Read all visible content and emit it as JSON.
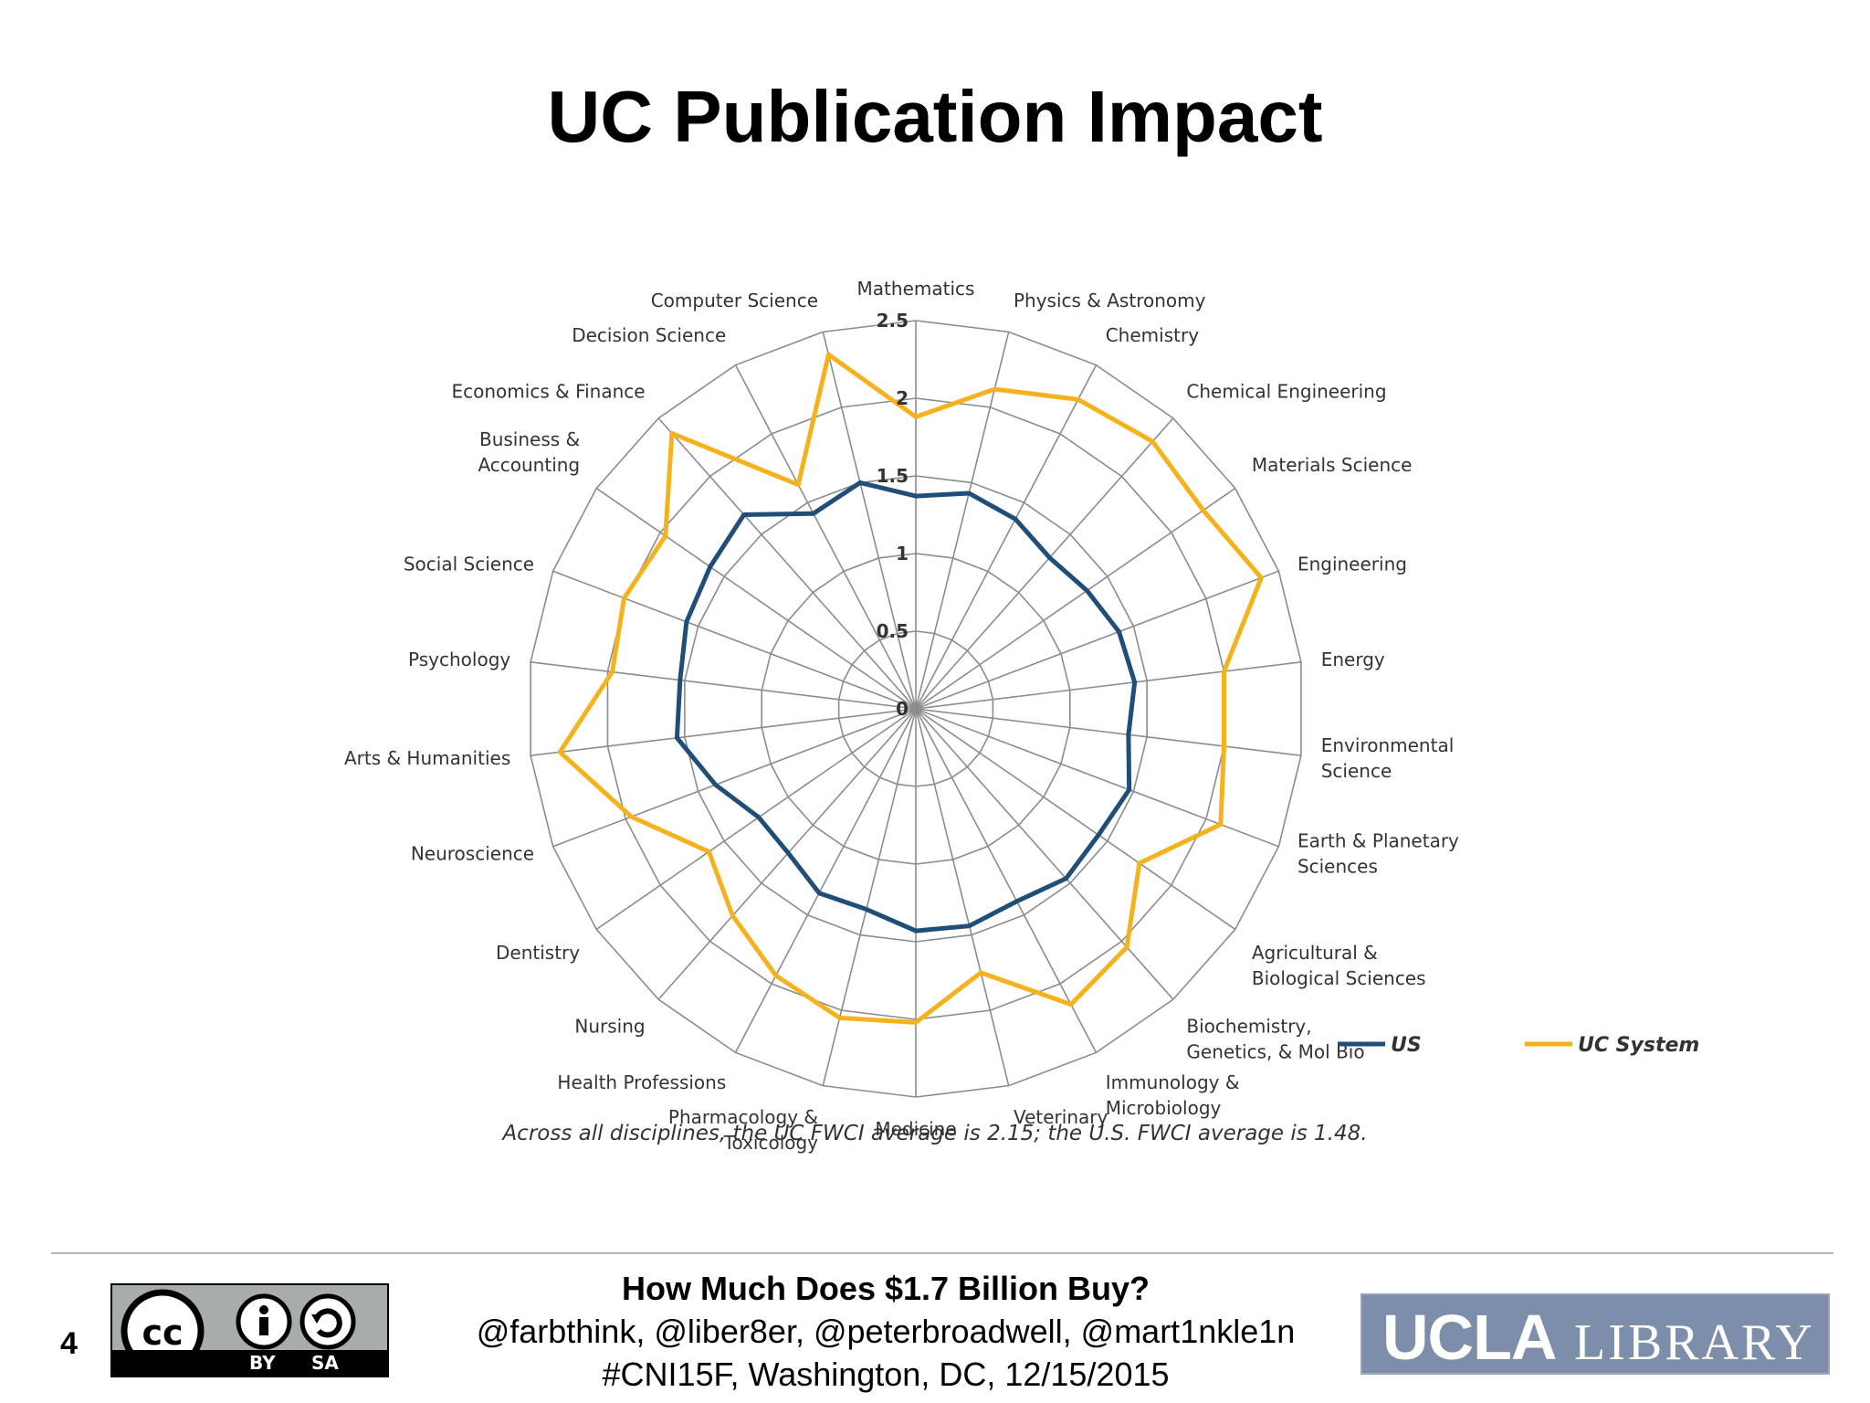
{
  "slide": {
    "title": "UC Publication Impact",
    "number": "4"
  },
  "chart_data": {
    "type": "radar",
    "categories": [
      "Mathematics",
      "Physics & Astronomy",
      "Chemistry",
      "Chemical Engineering",
      "Materials Science",
      "Engineering",
      "Energy",
      "Environmental Science",
      "Earth & Planetary Sciences",
      "Agricultural & Biological Sciences",
      "Biochemistry, Genetics, & Mol Bio",
      "Immunology & Microbiology",
      "Veterinary",
      "Medicine",
      "Pharmacology & Toxicology",
      "Health Professions",
      "Nursing",
      "Dentistry",
      "Neuroscience",
      "Arts & Humanities",
      "Psychology",
      "Social Science",
      "Business & Accounting",
      "Economics & Finance",
      "Decision Science",
      "Computer Science"
    ],
    "label_lines": [
      [
        "Mathematics"
      ],
      [
        "Physics & Astronomy"
      ],
      [
        "Chemistry"
      ],
      [
        "Chemical Engineering"
      ],
      [
        "Materials Science"
      ],
      [
        "Engineering"
      ],
      [
        "Energy"
      ],
      [
        "Environmental",
        "Science"
      ],
      [
        "Earth & Planetary",
        "Sciences"
      ],
      [
        "Agricultural &",
        "Biological Sciences"
      ],
      [
        "Biochemistry,",
        "Genetics, & Mol Bio"
      ],
      [
        "Immunology &",
        "Microbiology"
      ],
      [
        "Veterinary"
      ],
      [
        "Medicine"
      ],
      [
        "Pharmacology &",
        "Toxicology"
      ],
      [
        "Health Professions"
      ],
      [
        "Nursing"
      ],
      [
        "Dentistry"
      ],
      [
        "Neuroscience"
      ],
      [
        "Arts & Humanities"
      ],
      [
        "Psychology"
      ],
      [
        "Social Science"
      ],
      [
        "Business &",
        "Accounting"
      ],
      [
        "Economics & Finance"
      ],
      [
        "Decision Science"
      ],
      [
        "Computer Science"
      ]
    ],
    "series": [
      {
        "name": "US",
        "color": "#1f4e79",
        "values": [
          1.37,
          1.43,
          1.38,
          1.3,
          1.34,
          1.4,
          1.42,
          1.38,
          1.47,
          1.43,
          1.46,
          1.4,
          1.44,
          1.43,
          1.33,
          1.34,
          1.24,
          1.23,
          1.38,
          1.55,
          1.53,
          1.58,
          1.61,
          1.67,
          1.42,
          1.5
        ]
      },
      {
        "name": "UC System",
        "color": "#f5b21c",
        "values": [
          1.88,
          2.12,
          2.25,
          2.3,
          2.25,
          2.38,
          2.0,
          2.0,
          2.1,
          1.75,
          2.05,
          2.15,
          1.75,
          2.02,
          2.05,
          1.94,
          1.78,
          1.62,
          1.96,
          2.31,
          1.97,
          2.01,
          1.96,
          2.37,
          1.63,
          2.35
        ]
      }
    ],
    "rlim": [
      0,
      2.5
    ],
    "ticks": [
      "0",
      "0.5",
      "1",
      "1.5",
      "2",
      "2.5"
    ],
    "tick_values": [
      0,
      0.5,
      1,
      1.5,
      2,
      2.5
    ],
    "legend": "bottom-right",
    "caption": "Across all disciplines, the UC FWCI average is 2.15; the U.S. FWCI average is 1.48."
  },
  "footer": {
    "title": "How Much Does $1.7 Billion Buy?",
    "handles": "@farbthink, @liber8er, @peterbroadwell, @mart1nkle1n",
    "event": "#CNI15F, Washington, DC, 12/15/2015"
  },
  "license_badge": {
    "by": "BY",
    "sa": "SA"
  },
  "logo": {
    "word1": "UCLA",
    "word2": "LIBRARY"
  }
}
